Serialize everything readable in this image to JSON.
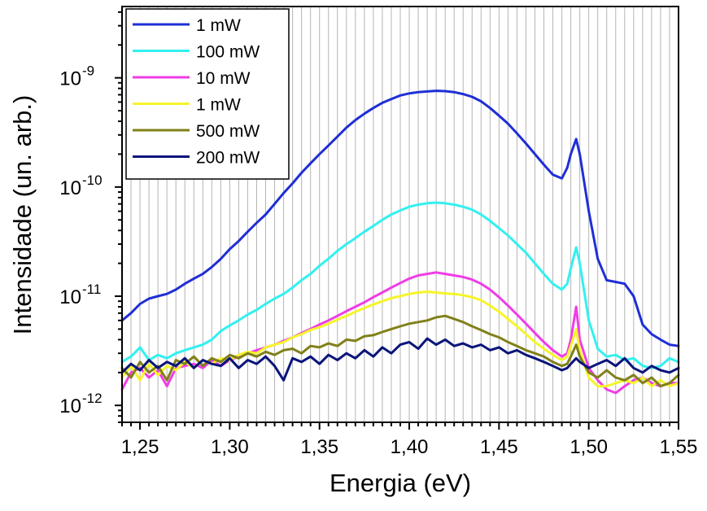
{
  "chart_data": {
    "type": "line",
    "title": "",
    "xlabel": "Energia (eV)",
    "ylabel": "Intensidade (un. arb.)",
    "xlim": [
      1.24,
      1.55
    ],
    "ylim": [
      7e-13,
      4.5e-09
    ],
    "y_scale": "log",
    "x_ticks": [
      1.25,
      1.3,
      1.35,
      1.4,
      1.45,
      1.5,
      1.55
    ],
    "x_tick_labels": [
      "1,25",
      "1,30",
      "1,35",
      "1,40",
      "1,45",
      "1,50",
      "1,55"
    ],
    "y_ticks": [
      {
        "value": 1e-12,
        "base": "10",
        "exp": "-12"
      },
      {
        "value": 1e-11,
        "base": "10",
        "exp": "-11"
      },
      {
        "value": 1e-10,
        "base": "10",
        "exp": "-10"
      },
      {
        "value": 1e-09,
        "base": "10",
        "exp": "-9"
      }
    ],
    "grid": "vertical",
    "legend_position": "top-left",
    "series": [
      {
        "name": "1 mW",
        "color": "#1f2ed6",
        "x": [
          1.24,
          1.245,
          1.25,
          1.255,
          1.26,
          1.265,
          1.27,
          1.275,
          1.28,
          1.285,
          1.29,
          1.295,
          1.3,
          1.305,
          1.31,
          1.315,
          1.32,
          1.325,
          1.33,
          1.335,
          1.34,
          1.345,
          1.35,
          1.355,
          1.36,
          1.365,
          1.37,
          1.375,
          1.38,
          1.385,
          1.39,
          1.395,
          1.4,
          1.405,
          1.41,
          1.415,
          1.42,
          1.425,
          1.43,
          1.435,
          1.44,
          1.445,
          1.45,
          1.455,
          1.46,
          1.465,
          1.47,
          1.475,
          1.48,
          1.485,
          1.488,
          1.49,
          1.493,
          1.495,
          1.5,
          1.505,
          1.51,
          1.515,
          1.52,
          1.525,
          1.53,
          1.535,
          1.54,
          1.545,
          1.55
        ],
        "y": [
          6e-12,
          7e-12,
          8.5e-12,
          9.5e-12,
          1e-11,
          1.05e-11,
          1.15e-11,
          1.3e-11,
          1.45e-11,
          1.6e-11,
          1.85e-11,
          2.2e-11,
          2.7e-11,
          3.2e-11,
          3.9e-11,
          4.7e-11,
          5.6e-11,
          7e-11,
          8.8e-11,
          1.08e-10,
          1.35e-10,
          1.65e-10,
          2e-10,
          2.4e-10,
          2.9e-10,
          3.5e-10,
          4.1e-10,
          4.7e-10,
          5.3e-10,
          5.9e-10,
          6.4e-10,
          6.9e-10,
          7.2e-10,
          7.4e-10,
          7.5e-10,
          7.6e-10,
          7.55e-10,
          7.4e-10,
          7.1e-10,
          6.7e-10,
          6.1e-10,
          5.3e-10,
          4.5e-10,
          3.8e-10,
          3.1e-10,
          2.5e-10,
          2e-10,
          1.6e-10,
          1.3e-10,
          1.2e-10,
          1.5e-10,
          2e-10,
          2.75e-10,
          2e-10,
          6e-11,
          2.2e-11,
          1.4e-11,
          1.35e-11,
          1.3e-11,
          1e-11,
          5.5e-12,
          4.5e-12,
          4e-12,
          3.6e-12,
          3.5e-12
        ]
      },
      {
        "name": "100 mW",
        "color": "#33f0f0",
        "x": [
          1.24,
          1.245,
          1.25,
          1.255,
          1.26,
          1.265,
          1.27,
          1.275,
          1.28,
          1.285,
          1.29,
          1.295,
          1.3,
          1.305,
          1.31,
          1.315,
          1.32,
          1.325,
          1.33,
          1.335,
          1.34,
          1.345,
          1.35,
          1.355,
          1.36,
          1.365,
          1.37,
          1.375,
          1.38,
          1.385,
          1.39,
          1.395,
          1.4,
          1.405,
          1.41,
          1.415,
          1.42,
          1.425,
          1.43,
          1.435,
          1.44,
          1.445,
          1.45,
          1.455,
          1.46,
          1.465,
          1.47,
          1.475,
          1.48,
          1.485,
          1.488,
          1.49,
          1.493,
          1.495,
          1.5,
          1.505,
          1.51,
          1.515,
          1.52,
          1.525,
          1.53,
          1.535,
          1.54,
          1.545,
          1.55
        ],
        "y": [
          2.5e-12,
          2.8e-12,
          3.4e-12,
          2.6e-12,
          2.9e-12,
          2.7e-12,
          3e-12,
          3.2e-12,
          3.4e-12,
          3.6e-12,
          4e-12,
          4.8e-12,
          5.4e-12,
          6e-12,
          6.8e-12,
          7.5e-12,
          8.5e-12,
          9.5e-12,
          1.05e-11,
          1.2e-11,
          1.4e-11,
          1.6e-11,
          1.9e-11,
          2.2e-11,
          2.6e-11,
          3e-11,
          3.4e-11,
          3.9e-11,
          4.4e-11,
          5e-11,
          5.6e-11,
          6.1e-11,
          6.6e-11,
          6.9e-11,
          7.1e-11,
          7.2e-11,
          7.1e-11,
          6.9e-11,
          6.6e-11,
          6.2e-11,
          5.6e-11,
          4.9e-11,
          4.2e-11,
          3.6e-11,
          3e-11,
          2.5e-11,
          2e-11,
          1.6e-11,
          1.3e-11,
          1.15e-11,
          1.3e-11,
          1.8e-11,
          2.8e-11,
          2e-11,
          6e-12,
          3.3e-12,
          2.8e-12,
          2.9e-12,
          2.6e-12,
          2.7e-12,
          2.3e-12,
          2.2e-12,
          2.3e-12,
          2.7e-12,
          2.5e-12
        ]
      },
      {
        "name": "10 mW",
        "color": "#f03ce6",
        "x": [
          1.24,
          1.245,
          1.25,
          1.255,
          1.26,
          1.265,
          1.27,
          1.275,
          1.28,
          1.285,
          1.29,
          1.295,
          1.3,
          1.305,
          1.31,
          1.315,
          1.32,
          1.325,
          1.33,
          1.335,
          1.34,
          1.345,
          1.35,
          1.355,
          1.36,
          1.365,
          1.37,
          1.375,
          1.38,
          1.385,
          1.39,
          1.395,
          1.4,
          1.405,
          1.41,
          1.415,
          1.42,
          1.425,
          1.43,
          1.435,
          1.44,
          1.445,
          1.45,
          1.455,
          1.46,
          1.465,
          1.47,
          1.475,
          1.48,
          1.485,
          1.488,
          1.49,
          1.493,
          1.495,
          1.5,
          1.505,
          1.51,
          1.515,
          1.52,
          1.525,
          1.53,
          1.535,
          1.54,
          1.545,
          1.55
        ],
        "y": [
          1.4e-12,
          2e-12,
          2.2e-12,
          1.8e-12,
          2.1e-12,
          1.5e-12,
          2.2e-12,
          2.3e-12,
          2.4e-12,
          2.2e-12,
          2.6e-12,
          2.3e-12,
          2.6e-12,
          2.8e-12,
          3e-12,
          3.2e-12,
          3.4e-12,
          3.6e-12,
          3.9e-12,
          4.2e-12,
          4.6e-12,
          5e-12,
          5.5e-12,
          6e-12,
          6.6e-12,
          7.3e-12,
          8e-12,
          8.8e-12,
          9.8e-12,
          1.08e-11,
          1.2e-11,
          1.32e-11,
          1.45e-11,
          1.55e-11,
          1.6e-11,
          1.65e-11,
          1.6e-11,
          1.55e-11,
          1.5e-11,
          1.42e-11,
          1.3e-11,
          1.15e-11,
          9.8e-12,
          8.2e-12,
          6.8e-12,
          5.6e-12,
          4.6e-12,
          3.8e-12,
          3.2e-12,
          2.8e-12,
          3e-12,
          4e-12,
          8e-12,
          4e-12,
          2.2e-12,
          1.7e-12,
          1.4e-12,
          1.3e-12,
          1.5e-12,
          1.7e-12,
          1.8e-12,
          1.6e-12,
          1.5e-12,
          1.6e-12,
          1.6e-12
        ]
      },
      {
        "name": "1 mW",
        "color": "#f5f52a",
        "x": [
          1.24,
          1.245,
          1.25,
          1.255,
          1.26,
          1.265,
          1.27,
          1.275,
          1.28,
          1.285,
          1.29,
          1.295,
          1.3,
          1.305,
          1.31,
          1.315,
          1.32,
          1.325,
          1.33,
          1.335,
          1.34,
          1.345,
          1.35,
          1.355,
          1.36,
          1.365,
          1.37,
          1.375,
          1.38,
          1.385,
          1.39,
          1.395,
          1.4,
          1.405,
          1.41,
          1.415,
          1.42,
          1.425,
          1.43,
          1.435,
          1.44,
          1.445,
          1.45,
          1.455,
          1.46,
          1.465,
          1.47,
          1.475,
          1.48,
          1.485,
          1.488,
          1.49,
          1.493,
          1.495,
          1.5,
          1.505,
          1.51,
          1.515,
          1.52,
          1.525,
          1.53,
          1.535,
          1.54,
          1.545,
          1.55
        ],
        "y": [
          1.8e-12,
          2.3e-12,
          1.7e-12,
          2.4e-12,
          1.9e-12,
          2.3e-12,
          2.1e-12,
          2.5e-12,
          2.2e-12,
          2.6e-12,
          2.4e-12,
          2.7e-12,
          2.6e-12,
          2.9e-12,
          3.1e-12,
          3e-12,
          3.4e-12,
          3.6e-12,
          3.8e-12,
          4.2e-12,
          4.5e-12,
          4.9e-12,
          5.2e-12,
          5.6e-12,
          6.1e-12,
          6.6e-12,
          7.2e-12,
          7.8e-12,
          8.4e-12,
          9e-12,
          9.6e-12,
          1e-11,
          1.05e-11,
          1.08e-11,
          1.1e-11,
          1.08e-11,
          1.06e-11,
          1.05e-11,
          1.02e-11,
          9.8e-12,
          9.2e-12,
          8.2e-12,
          7.2e-12,
          6.2e-12,
          5.3e-12,
          4.5e-12,
          3.8e-12,
          3.3e-12,
          2.9e-12,
          2.6e-12,
          2.8e-12,
          3.5e-12,
          5e-12,
          3.2e-12,
          1.8e-12,
          1.5e-12,
          1.5e-12,
          1.6e-12,
          1.7e-12,
          1.6e-12,
          1.8e-12,
          1.5e-12,
          1.7e-12,
          1.5e-12,
          1.6e-12
        ]
      },
      {
        "name": "500 mW",
        "color": "#808019",
        "x": [
          1.24,
          1.245,
          1.25,
          1.255,
          1.26,
          1.265,
          1.27,
          1.275,
          1.28,
          1.285,
          1.29,
          1.295,
          1.3,
          1.305,
          1.31,
          1.315,
          1.32,
          1.325,
          1.33,
          1.335,
          1.34,
          1.345,
          1.35,
          1.355,
          1.36,
          1.365,
          1.37,
          1.375,
          1.38,
          1.385,
          1.39,
          1.395,
          1.4,
          1.405,
          1.41,
          1.415,
          1.42,
          1.425,
          1.43,
          1.435,
          1.44,
          1.445,
          1.45,
          1.455,
          1.46,
          1.465,
          1.47,
          1.475,
          1.48,
          1.485,
          1.488,
          1.49,
          1.493,
          1.495,
          1.5,
          1.505,
          1.51,
          1.515,
          1.52,
          1.525,
          1.53,
          1.535,
          1.54,
          1.545,
          1.55
        ],
        "y": [
          2.2e-12,
          1.8e-12,
          2.5e-12,
          2e-12,
          2.3e-12,
          1.7e-12,
          2.6e-12,
          2.4e-12,
          2.8e-12,
          2.3e-12,
          2.7e-12,
          2.5e-12,
          2.9e-12,
          2.7e-12,
          3e-12,
          2.8e-12,
          3.1e-12,
          2.9e-12,
          3.2e-12,
          3.3e-12,
          3e-12,
          3.5e-12,
          3.4e-12,
          3.7e-12,
          3.5e-12,
          4e-12,
          3.9e-12,
          4.3e-12,
          4.4e-12,
          4.7e-12,
          5e-12,
          5.3e-12,
          5.6e-12,
          5.8e-12,
          6e-12,
          6.4e-12,
          6.6e-12,
          6.2e-12,
          5.8e-12,
          5.3e-12,
          4.9e-12,
          4.5e-12,
          4.2e-12,
          3.8e-12,
          3.5e-12,
          3.2e-12,
          3e-12,
          2.8e-12,
          2.5e-12,
          2.3e-12,
          2.4e-12,
          2.8e-12,
          3.6e-12,
          2.8e-12,
          2e-12,
          1.8e-12,
          2.1e-12,
          1.8e-12,
          1.7e-12,
          1.9e-12,
          1.6e-12,
          1.8e-12,
          1.5e-12,
          1.6e-12,
          1.9e-12
        ]
      },
      {
        "name": "200 mW",
        "color": "#0a147a",
        "x": [
          1.24,
          1.245,
          1.25,
          1.255,
          1.26,
          1.265,
          1.27,
          1.275,
          1.28,
          1.285,
          1.29,
          1.295,
          1.3,
          1.305,
          1.31,
          1.315,
          1.32,
          1.325,
          1.33,
          1.335,
          1.34,
          1.345,
          1.35,
          1.355,
          1.36,
          1.365,
          1.37,
          1.375,
          1.38,
          1.385,
          1.39,
          1.395,
          1.4,
          1.405,
          1.41,
          1.415,
          1.42,
          1.425,
          1.43,
          1.435,
          1.44,
          1.445,
          1.45,
          1.455,
          1.46,
          1.465,
          1.47,
          1.475,
          1.48,
          1.485,
          1.488,
          1.49,
          1.493,
          1.495,
          1.5,
          1.505,
          1.51,
          1.515,
          1.52,
          1.525,
          1.53,
          1.535,
          1.54,
          1.545,
          1.55
        ],
        "y": [
          2e-12,
          2.4e-12,
          2.1e-12,
          2.6e-12,
          2.2e-12,
          2.5e-12,
          2.3e-12,
          2.7e-12,
          2.2e-12,
          2.6e-12,
          2.4e-12,
          2.3e-12,
          2.7e-12,
          2.2e-12,
          2.6e-12,
          2.4e-12,
          2.8e-12,
          2.3e-12,
          1.7e-12,
          2.7e-12,
          2.5e-12,
          2.8e-12,
          2.4e-12,
          2.9e-12,
          2.6e-12,
          3e-12,
          2.7e-12,
          3.2e-12,
          2.8e-12,
          3.4e-12,
          3e-12,
          3.6e-12,
          3.8e-12,
          3.3e-12,
          4.1e-12,
          3.6e-12,
          4e-12,
          3.5e-12,
          3.7e-12,
          3.4e-12,
          3.6e-12,
          3.2e-12,
          3.4e-12,
          3e-12,
          3.2e-12,
          2.9e-12,
          2.7e-12,
          2.5e-12,
          2.3e-12,
          2.1e-12,
          2.2e-12,
          2.4e-12,
          2.7e-12,
          2.5e-12,
          2.2e-12,
          2.4e-12,
          2.6e-12,
          2.3e-12,
          2.7e-12,
          2.2e-12,
          2e-12,
          2.3e-12,
          2.1e-12,
          2e-12,
          2.2e-12
        ]
      }
    ]
  }
}
